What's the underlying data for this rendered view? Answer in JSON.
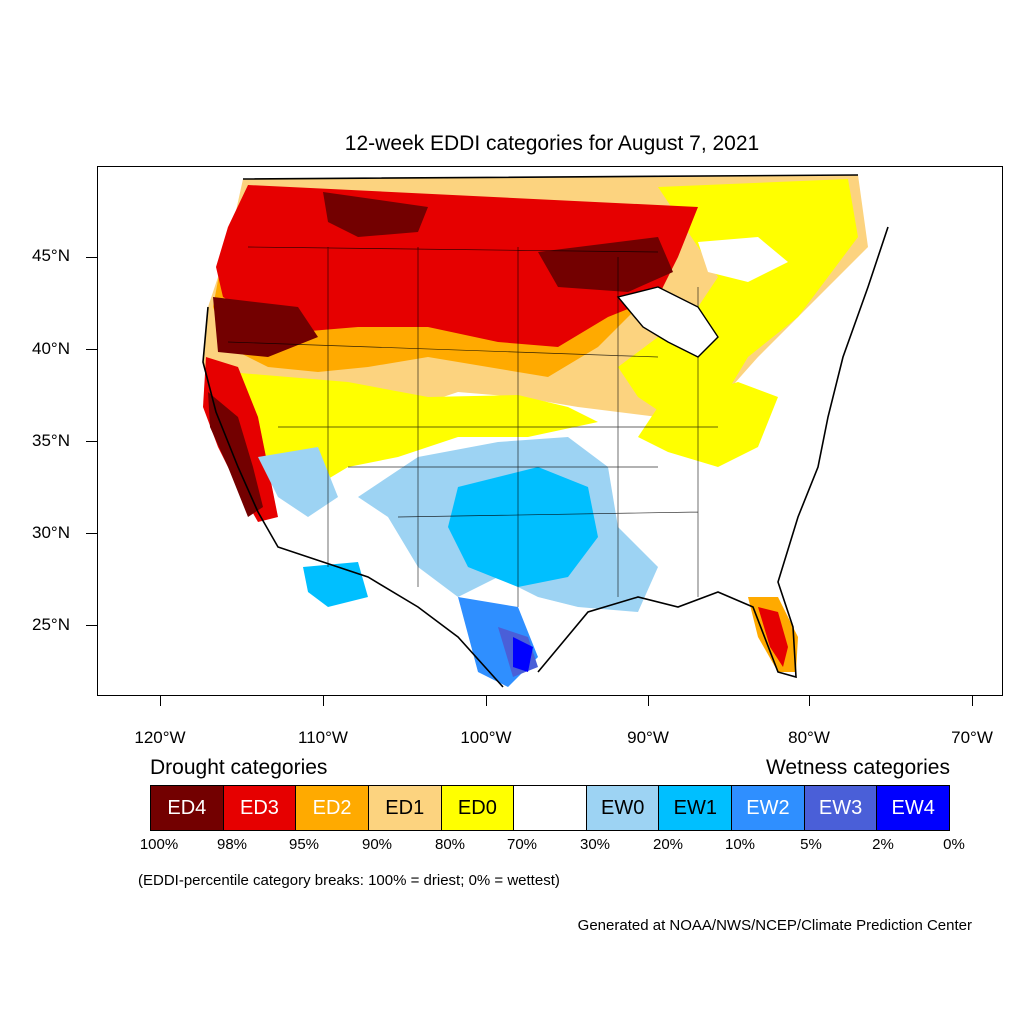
{
  "title": "12-week EDDI categories for August 7, 2021",
  "lat_labels": [
    "45°N",
    "40°N",
    "35°N",
    "30°N",
    "25°N"
  ],
  "lon_labels": [
    "120°W",
    "110°W",
    "100°W",
    "90°W",
    "80°W",
    "70°W"
  ],
  "legend": {
    "drought_heading": "Drought categories",
    "wetness_heading": "Wetness categories",
    "categories": [
      {
        "label": "ED4",
        "color": "#730000"
      },
      {
        "label": "ED3",
        "color": "#e60000"
      },
      {
        "label": "ED2",
        "color": "#ffaa00"
      },
      {
        "label": "ED1",
        "color": "#fcd37f"
      },
      {
        "label": "ED0",
        "color": "#ffff00"
      },
      {
        "label": "",
        "color": "#ffffff"
      },
      {
        "label": "EW0",
        "color": "#9dd3f3"
      },
      {
        "label": "EW1",
        "color": "#00bfff"
      },
      {
        "label": "EW2",
        "color": "#2f8fff"
      },
      {
        "label": "EW3",
        "color": "#4a5fd8"
      },
      {
        "label": "EW4",
        "color": "#0000ff"
      }
    ],
    "breaks": [
      "100%",
      "98%",
      "95%",
      "90%",
      "80%",
      "70%",
      "30%",
      "20%",
      "10%",
      "5%",
      "2%",
      "0%"
    ]
  },
  "note": "(EDDI-percentile category breaks: 100% = driest; 0% = wettest)",
  "credit": "Generated at NOAA/NWS/NCEP/Climate Prediction Center"
}
